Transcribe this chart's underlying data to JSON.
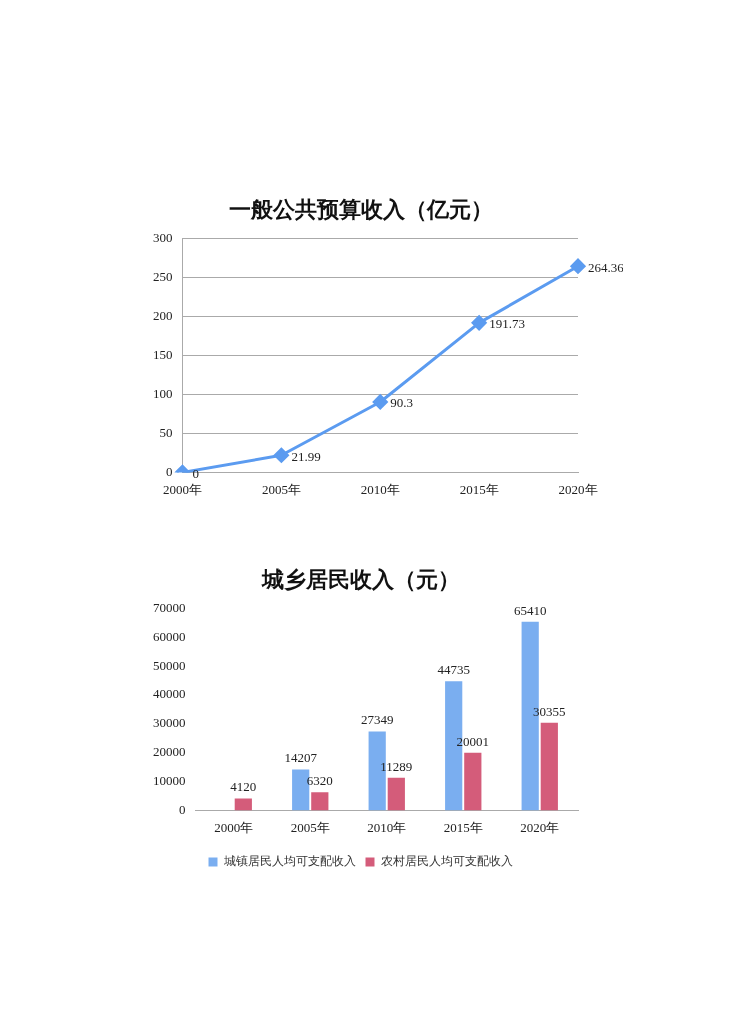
{
  "chart_data": [
    {
      "type": "line",
      "title": "一般公共预算收入（亿元）",
      "categories": [
        "2000年",
        "2005年",
        "2010年",
        "2015年",
        "2020年"
      ],
      "series": [
        {
          "color": "#5b9bf0",
          "values": [
            0,
            21.99,
            90.3,
            191.73,
            264.36
          ]
        }
      ],
      "ylim": [
        0,
        300
      ],
      "yticks": [
        0,
        50,
        100,
        150,
        200,
        250,
        300
      ],
      "grid": "y",
      "legend": false,
      "marker": "diamond",
      "line_style": "solid",
      "data_labels": true
    },
    {
      "type": "bar",
      "title": "城乡居民收入（元）",
      "categories": [
        "2000年",
        "2005年",
        "2010年",
        "2015年",
        "2020年"
      ],
      "series": [
        {
          "name": "城镇居民人均可支配收入",
          "color": "#7aaef0",
          "values": [
            null,
            14207,
            27349,
            44735,
            65410
          ]
        },
        {
          "name": "农村居民人均可支配收入",
          "color": "#d45c7a",
          "values": [
            4120,
            6320,
            11289,
            20001,
            30355
          ]
        }
      ],
      "ylim": [
        0,
        70000
      ],
      "yticks": [
        0,
        10000,
        20000,
        30000,
        40000,
        50000,
        60000,
        70000
      ],
      "grid": false,
      "legend": "bottom",
      "data_labels": true
    }
  ]
}
